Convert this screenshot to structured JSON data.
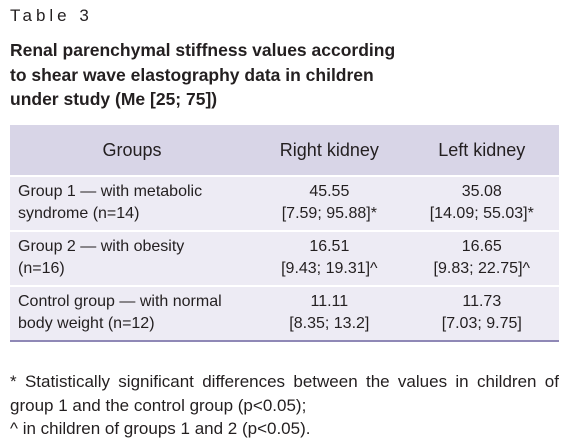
{
  "header": {
    "label": "Table 3",
    "title": [
      "Renal parenchymal stiffness values according",
      "to shear wave elastography data in children",
      "under study (Me [25; 75])"
    ]
  },
  "table": {
    "columns": [
      "Groups",
      "Right kidney",
      "Left kidney"
    ],
    "rows": [
      [
        [
          "Group 1 — with metabolic",
          "syndrome (n=14)"
        ],
        [
          "45.55",
          "[7.59; 95.88]*"
        ],
        [
          "35.08",
          "[14.09; 55.03]*"
        ]
      ],
      [
        [
          "Group 2 — with obesity",
          "(n=16)"
        ],
        [
          "16.51",
          "[9.43; 19.31]^"
        ],
        [
          "16.65",
          "[9.83; 22.75]^"
        ]
      ],
      [
        [
          "Control group — with normal",
          "body weight (n=12)"
        ],
        [
          "11.11",
          "[8.35; 13.2]"
        ],
        [
          "11.73",
          "[7.03; 9.75]"
        ]
      ]
    ]
  },
  "footnotes": [
    "* Statistically significant differences between the values in children of group 1 and the control group (p<0.05);",
    "^ in children of groups 1 and 2 (p<0.05)."
  ]
}
